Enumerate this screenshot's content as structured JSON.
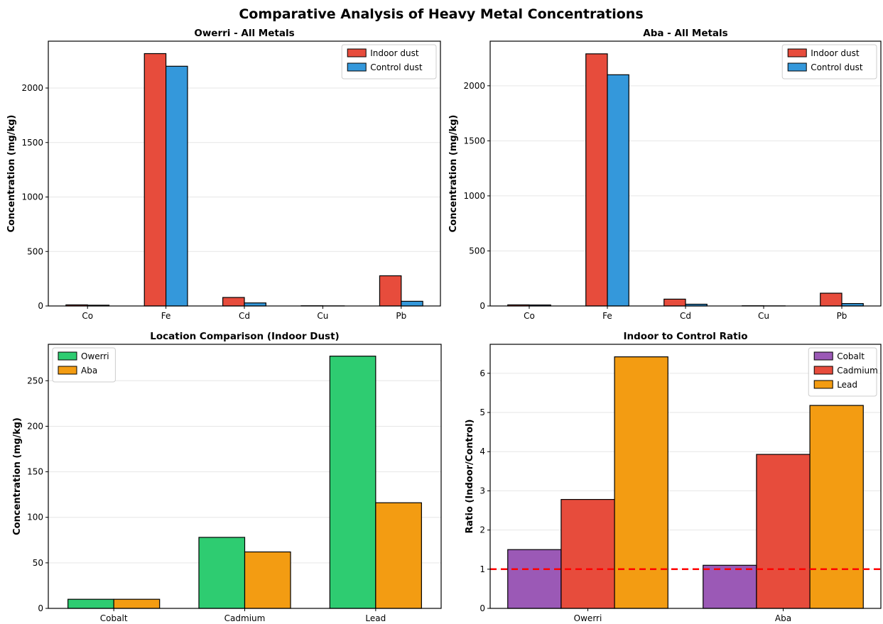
{
  "figure": {
    "title": "Comparative Analysis of Heavy Metal Concentrations"
  },
  "colors": {
    "indoor": "#e74c3c",
    "control": "#3498db",
    "owerri": "#2ecc71",
    "aba": "#f39c12",
    "cobalt": "#9b59b6",
    "cadmium": "#e74c3c",
    "lead": "#f39c12",
    "reference_line": "#ff0000"
  },
  "chart_data": [
    {
      "id": "owerri",
      "type": "bar",
      "title": "Owerri - All Metals",
      "xlabel": "",
      "ylabel": "Concentration (mg/kg)",
      "categories": [
        "Co",
        "Fe",
        "Cd",
        "Cu",
        "Pb"
      ],
      "series": [
        {
          "name": "Indoor dust",
          "color": "#e74c3c",
          "values": [
            10,
            2316,
            78,
            2,
            277
          ]
        },
        {
          "name": "Control dust",
          "color": "#3498db",
          "values": [
            7,
            2200,
            28,
            1,
            43
          ]
        }
      ],
      "ylim": [
        0,
        2430
      ],
      "yticks": [
        0,
        500,
        1000,
        1500,
        2000
      ],
      "grid": "horizontal",
      "legend": "top-right"
    },
    {
      "id": "aba",
      "type": "bar",
      "title": "Aba - All Metals",
      "xlabel": "",
      "ylabel": "Concentration (mg/kg)",
      "categories": [
        "Co",
        "Fe",
        "Cd",
        "Cu",
        "Pb"
      ],
      "series": [
        {
          "name": "Indoor dust",
          "color": "#e74c3c",
          "values": [
            10,
            2290,
            62,
            2,
            116
          ]
        },
        {
          "name": "Control dust",
          "color": "#3498db",
          "values": [
            9,
            2100,
            16,
            1,
            22
          ]
        }
      ],
      "ylim": [
        0,
        2405
      ],
      "yticks": [
        0,
        500,
        1000,
        1500,
        2000
      ],
      "grid": "horizontal",
      "legend": "top-right"
    },
    {
      "id": "location",
      "type": "bar",
      "title": "Location Comparison (Indoor Dust)",
      "xlabel": "",
      "ylabel": "Concentration (mg/kg)",
      "categories": [
        "Cobalt",
        "Cadmium",
        "Lead"
      ],
      "series": [
        {
          "name": "Owerri",
          "color": "#2ecc71",
          "values": [
            10,
            78,
            277
          ]
        },
        {
          "name": "Aba",
          "color": "#f39c12",
          "values": [
            10,
            62,
            116
          ]
        }
      ],
      "ylim": [
        0,
        290
      ],
      "yticks": [
        0,
        50,
        100,
        150,
        200,
        250
      ],
      "grid": "horizontal",
      "legend": "top-left"
    },
    {
      "id": "ratio",
      "type": "bar",
      "title": "Indoor to Control Ratio",
      "xlabel": "",
      "ylabel": "Ratio (Indoor/Control)",
      "categories": [
        "Owerri",
        "Aba"
      ],
      "series": [
        {
          "name": "Cobalt",
          "color": "#9b59b6",
          "values": [
            1.5,
            1.1
          ]
        },
        {
          "name": "Cadmium",
          "color": "#e74c3c",
          "values": [
            2.78,
            3.93
          ]
        },
        {
          "name": "Lead",
          "color": "#f39c12",
          "values": [
            6.42,
            5.18
          ]
        }
      ],
      "ylim": [
        0,
        6.74
      ],
      "yticks": [
        0,
        1,
        2,
        3,
        4,
        5,
        6
      ],
      "reference_line": 1,
      "grid": "horizontal",
      "legend": "top-right"
    }
  ]
}
